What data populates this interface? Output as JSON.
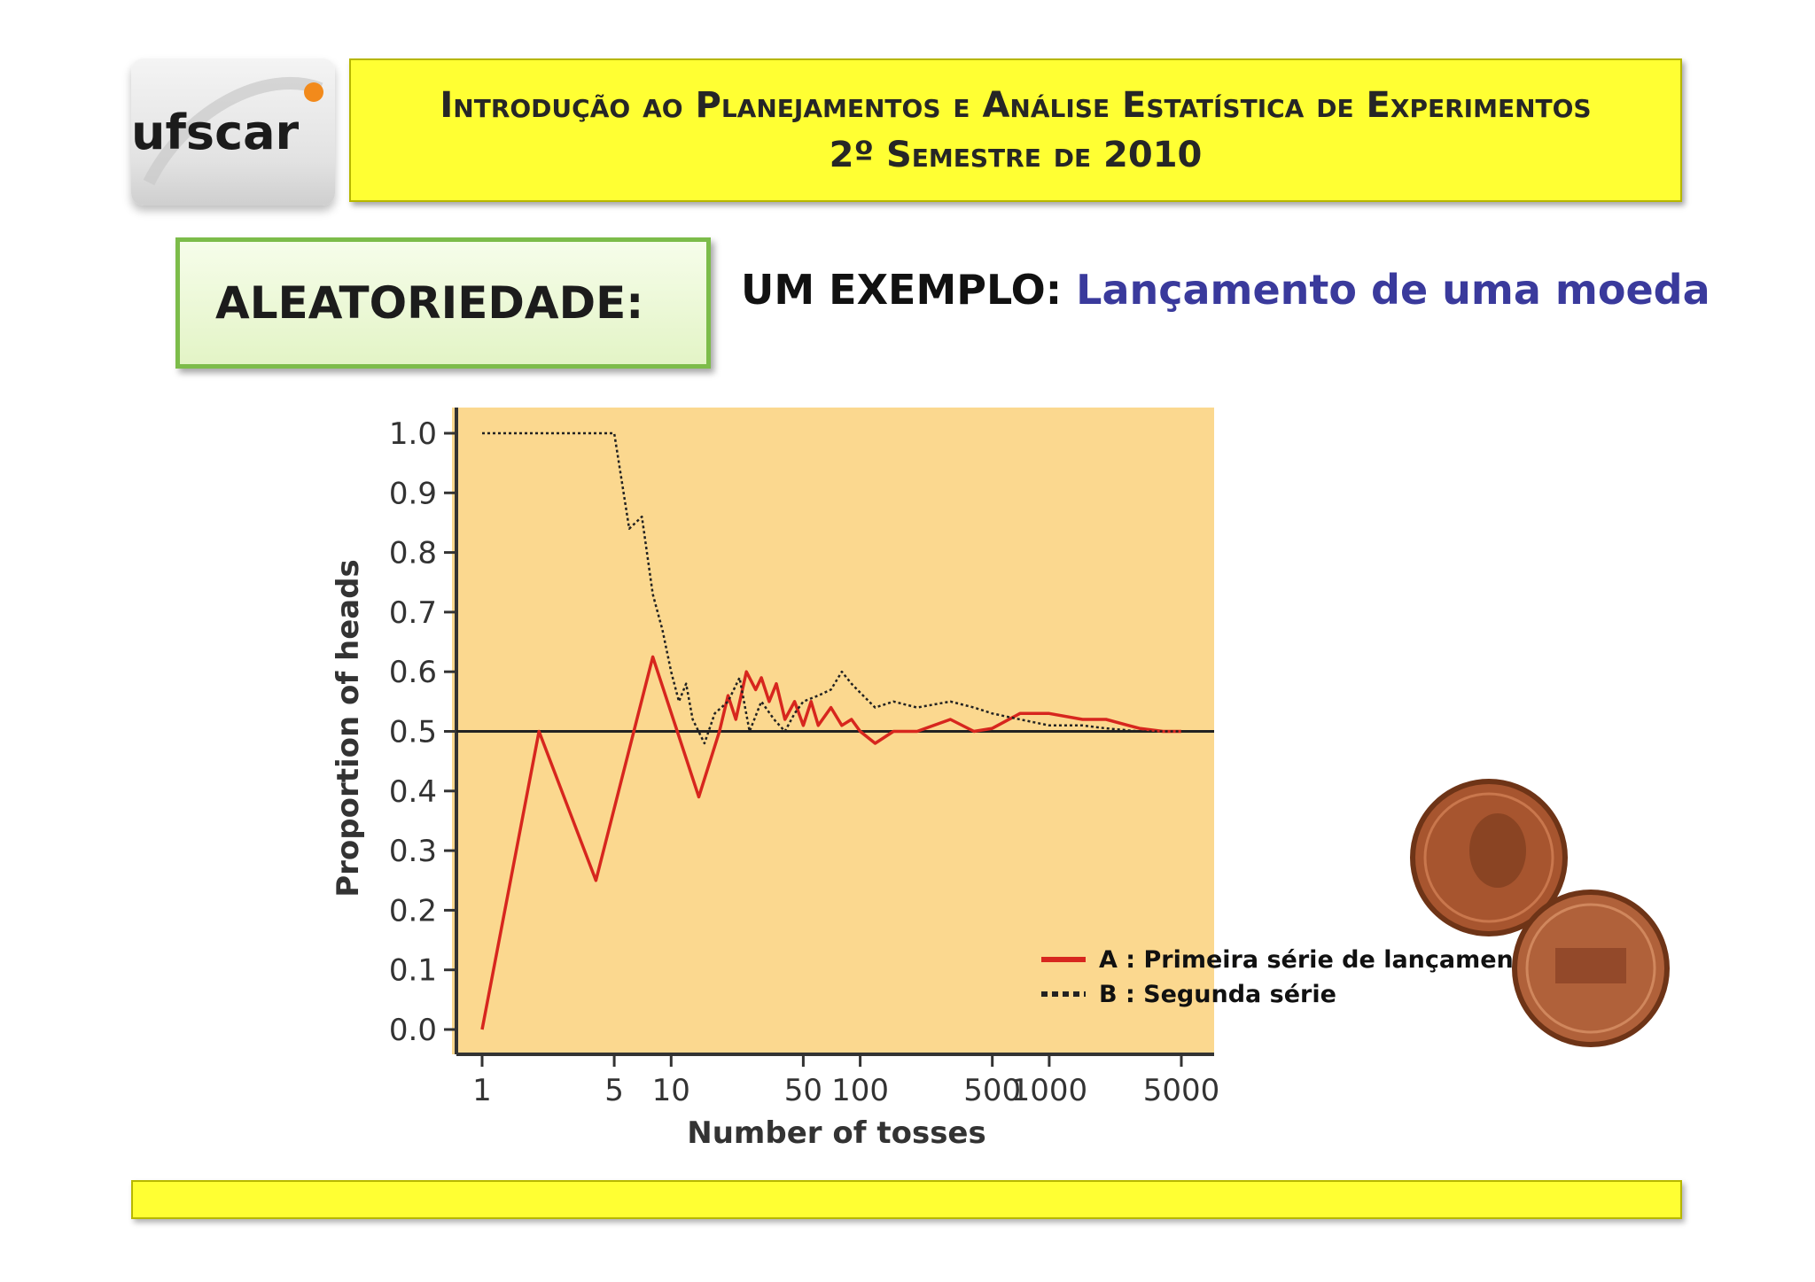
{
  "header": {
    "line1": "Introdução ao Planejamentos e Análise Estatística de Experimentos",
    "line2": "2º Semestre de 2010"
  },
  "logo": {
    "text": "ufscar",
    "name": "UFSCar logo"
  },
  "section": {
    "label": "ALEATORIEDADE:"
  },
  "subtitle": {
    "prefix": "UM EXEMPLO: ",
    "topic": "Lançamento de uma moeda"
  },
  "colors": {
    "header_band": "#ffff33",
    "chart_background": "#fbd88f",
    "series_a": "#d7261e",
    "series_b": "#222222",
    "topic_text": "#3a3a9c",
    "section_border": "#7cbc4a"
  },
  "coins": {
    "icon": "penny-coins-image"
  },
  "chart_data": {
    "type": "line",
    "title": "",
    "xlabel": "Number of tosses",
    "ylabel": "Proportion of heads",
    "xscale": "log",
    "xlim": [
      1,
      5000
    ],
    "ylim": [
      0,
      1
    ],
    "xticks": [
      1,
      5,
      10,
      50,
      100,
      500,
      1000,
      5000
    ],
    "xtick_labels": [
      "1",
      "5",
      "10",
      "50",
      "100",
      "500",
      "1000",
      "5000"
    ],
    "yticks": [
      0.0,
      0.1,
      0.2,
      0.3,
      0.4,
      0.5,
      0.6,
      0.7,
      0.8,
      0.9,
      1.0
    ],
    "ytick_labels": [
      "0.0",
      "0.1",
      "0.2",
      "0.3",
      "0.4",
      "0.5",
      "0.6",
      "0.7",
      "0.8",
      "0.9",
      "1.0"
    ],
    "reference_line": 0.5,
    "legend_position": "bottom-right",
    "grid": false,
    "series": [
      {
        "name": "A : Primeira série de lançamentos",
        "style": "solid",
        "color": "#d7261e",
        "points": [
          [
            1,
            0.0
          ],
          [
            2,
            0.5
          ],
          [
            4,
            0.25
          ],
          [
            8,
            0.625
          ],
          [
            14,
            0.39
          ],
          [
            18,
            0.5
          ],
          [
            20,
            0.56
          ],
          [
            22,
            0.52
          ],
          [
            25,
            0.6
          ],
          [
            28,
            0.57
          ],
          [
            30,
            0.59
          ],
          [
            33,
            0.55
          ],
          [
            36,
            0.58
          ],
          [
            40,
            0.52
          ],
          [
            45,
            0.55
          ],
          [
            50,
            0.51
          ],
          [
            55,
            0.55
          ],
          [
            60,
            0.51
          ],
          [
            70,
            0.54
          ],
          [
            80,
            0.51
          ],
          [
            90,
            0.52
          ],
          [
            100,
            0.5
          ],
          [
            120,
            0.48
          ],
          [
            150,
            0.5
          ],
          [
            200,
            0.5
          ],
          [
            300,
            0.52
          ],
          [
            400,
            0.5
          ],
          [
            500,
            0.505
          ],
          [
            700,
            0.53
          ],
          [
            1000,
            0.53
          ],
          [
            1500,
            0.52
          ],
          [
            2000,
            0.52
          ],
          [
            3000,
            0.505
          ],
          [
            4000,
            0.5
          ],
          [
            5000,
            0.5
          ]
        ]
      },
      {
        "name": "B : Segunda série",
        "style": "dotted",
        "color": "#222222",
        "points": [
          [
            1,
            1.0
          ],
          [
            2,
            1.0
          ],
          [
            3,
            1.0
          ],
          [
            4,
            1.0
          ],
          [
            5,
            1.0
          ],
          [
            6,
            0.84
          ],
          [
            7,
            0.86
          ],
          [
            8,
            0.73
          ],
          [
            9,
            0.67
          ],
          [
            10,
            0.6
          ],
          [
            11,
            0.55
          ],
          [
            12,
            0.58
          ],
          [
            13,
            0.52
          ],
          [
            15,
            0.48
          ],
          [
            17,
            0.53
          ],
          [
            20,
            0.55
          ],
          [
            23,
            0.59
          ],
          [
            26,
            0.5
          ],
          [
            30,
            0.55
          ],
          [
            35,
            0.52
          ],
          [
            40,
            0.5
          ],
          [
            45,
            0.53
          ],
          [
            50,
            0.55
          ],
          [
            60,
            0.56
          ],
          [
            70,
            0.57
          ],
          [
            80,
            0.6
          ],
          [
            90,
            0.58
          ],
          [
            100,
            0.565
          ],
          [
            120,
            0.54
          ],
          [
            150,
            0.55
          ],
          [
            200,
            0.54
          ],
          [
            300,
            0.55
          ],
          [
            400,
            0.54
          ],
          [
            500,
            0.53
          ],
          [
            700,
            0.52
          ],
          [
            1000,
            0.51
          ],
          [
            1500,
            0.51
          ],
          [
            2000,
            0.505
          ],
          [
            3000,
            0.5
          ],
          [
            4000,
            0.5
          ],
          [
            5000,
            0.5
          ]
        ]
      }
    ]
  }
}
